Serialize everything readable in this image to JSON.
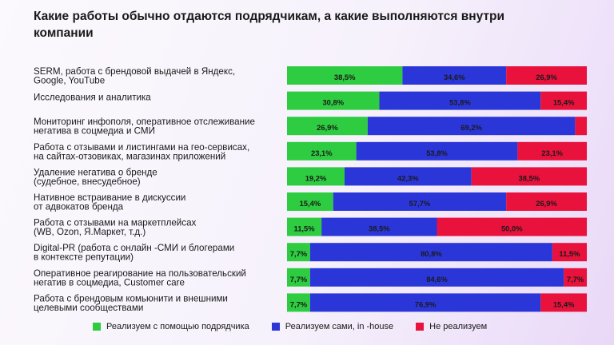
{
  "title": "Какие работы обычно отдаются подрядчикам, а какие выполняются внутри компании",
  "chart_data": {
    "type": "bar",
    "orientation": "horizontal",
    "stacked": true,
    "categories": [
      [
        "SERM, работа с брендовой выдачей в Яндекс,",
        "Google, YouTube"
      ],
      [
        "Исследования и аналитика"
      ],
      [
        "Мониторинг инфополя, оперативное отслеживание",
        "негатива в соцмедиа и СМИ"
      ],
      [
        "Работа с отзывами и листингами на гео-сервисах,",
        "на сайтах-отзовиках, магазинах приложений"
      ],
      [
        "Удаление негатива о бренде",
        "(судебное, внесудебное)"
      ],
      [
        "Нативное встраивание в дискуссии",
        "от адвокатов бренда"
      ],
      [
        "Работа с отзывами на маркетплейсах",
        "(WB, Ozon, Я.Маркет, т.д.)"
      ],
      [
        "Digital-PR (работа с онлайн -СМИ и блогерами",
        "в контексте репутации)"
      ],
      [
        "Оперативное реагирование на пользовательский",
        "негатив в соцмедиа, Customer care"
      ],
      [
        "Работа с брендовым комьюнити и внешними",
        "целевыми сообществами"
      ]
    ],
    "series": [
      {
        "name": "Реализуем с помощью подрядчика",
        "color": "#2ecc40",
        "values": [
          38.5,
          30.8,
          26.9,
          23.1,
          19.2,
          15.4,
          11.5,
          7.7,
          7.7,
          7.7
        ],
        "labels": [
          "38,5%",
          "30,8%",
          "26,9%",
          "23,1%",
          "19,2%",
          "15,4%",
          "11,5%",
          "7,7%",
          "7,7%",
          "7,7%"
        ]
      },
      {
        "name": "Реализуем сами, in -house",
        "color": "#2b36d9",
        "values": [
          34.6,
          53.8,
          69.2,
          53.8,
          42.3,
          57.7,
          38.5,
          80.8,
          84.6,
          76.9
        ],
        "labels": [
          "34,6%",
          "53,8%",
          "69,2%",
          "53,8%",
          "42,3%",
          "57,7%",
          "38,5%",
          "80,8%",
          "84,6%",
          "76,9%"
        ]
      },
      {
        "name": "Не реализуем",
        "color": "#e8123c",
        "values": [
          26.9,
          15.4,
          3.9,
          23.1,
          38.5,
          26.9,
          50.0,
          11.5,
          7.7,
          15.4
        ],
        "labels": [
          "26,9%",
          "15,4%",
          "",
          "23,1%",
          "38,5%",
          "26,9%",
          "50,0%",
          "11,5%",
          "7,7%",
          "15,4%"
        ]
      }
    ],
    "xlim": [
      0,
      100
    ],
    "legend_position": "bottom",
    "grid": false
  }
}
